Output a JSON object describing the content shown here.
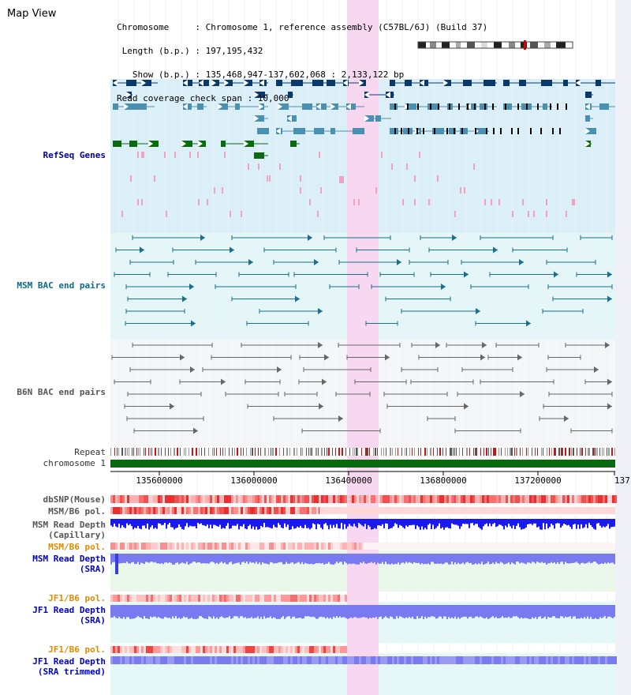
{
  "page": {
    "title": "Map View"
  },
  "info": {
    "lines": [
      "Chromosome     : Chromosome 1, reference assembly (C57BL/6J) (Build 37)",
      " Length (b.p.) : 197,195,432",
      "   Show (b.p.) : 135,468,947-137,602,068 : 2,133,122 bp",
      "Read coverage check span : 10,000"
    ]
  },
  "tracks": {
    "refseq": "RefSeq Genes",
    "msm_bac": "MSM BAC end pairs",
    "b6n_bac": "B6N BAC end pairs",
    "repeat": "Repeat",
    "chromosome": "chromosome 1",
    "dbsnp": "dbSNP(Mouse)",
    "msm_pol_1": "MSM/B6 pol.",
    "msm_depth_cap_1": "MSM Read Depth",
    "msm_depth_cap_2": "(Capillary)",
    "msm_pol_2": "MSM/B6 pol.",
    "msm_depth_sra_1": "MSM Read Depth",
    "msm_depth_sra_2": "(SRA)",
    "jf1_pol_1": "JF1/B6 pol.",
    "jf1_depth_sra_1": "JF1 Read Depth",
    "jf1_depth_sra_2": "(SRA)",
    "jf1_pol_2": "JF1/B6 pol.",
    "jf1_depth_trim_1": "JF1 Read Depth",
    "jf1_depth_trim_2": "(SRA trimmed)"
  },
  "axis": {
    "ticks": [
      "135600000",
      "136000000",
      "136400000",
      "136800000",
      "137200000",
      "137"
    ]
  },
  "colors": {
    "highlight": "#f8d8f0",
    "refseq_bg": "#daeff8",
    "msm_bg": "#e4f6f8",
    "b6n_bg": "#f4f6f8",
    "gene_navy": "#0a3a6a",
    "gene_teal": "#4a90b0",
    "gene_green": "#0a6a10",
    "msm_line": "#1a6f8a",
    "b6n_line": "#666666",
    "chrom_green": "#0a6a10",
    "depth_blue": "#1a1aee",
    "depth_light": "#7a7af0",
    "sra_bg": "#eaf8ea",
    "jf1_bg": "#e4f8f8"
  }
}
